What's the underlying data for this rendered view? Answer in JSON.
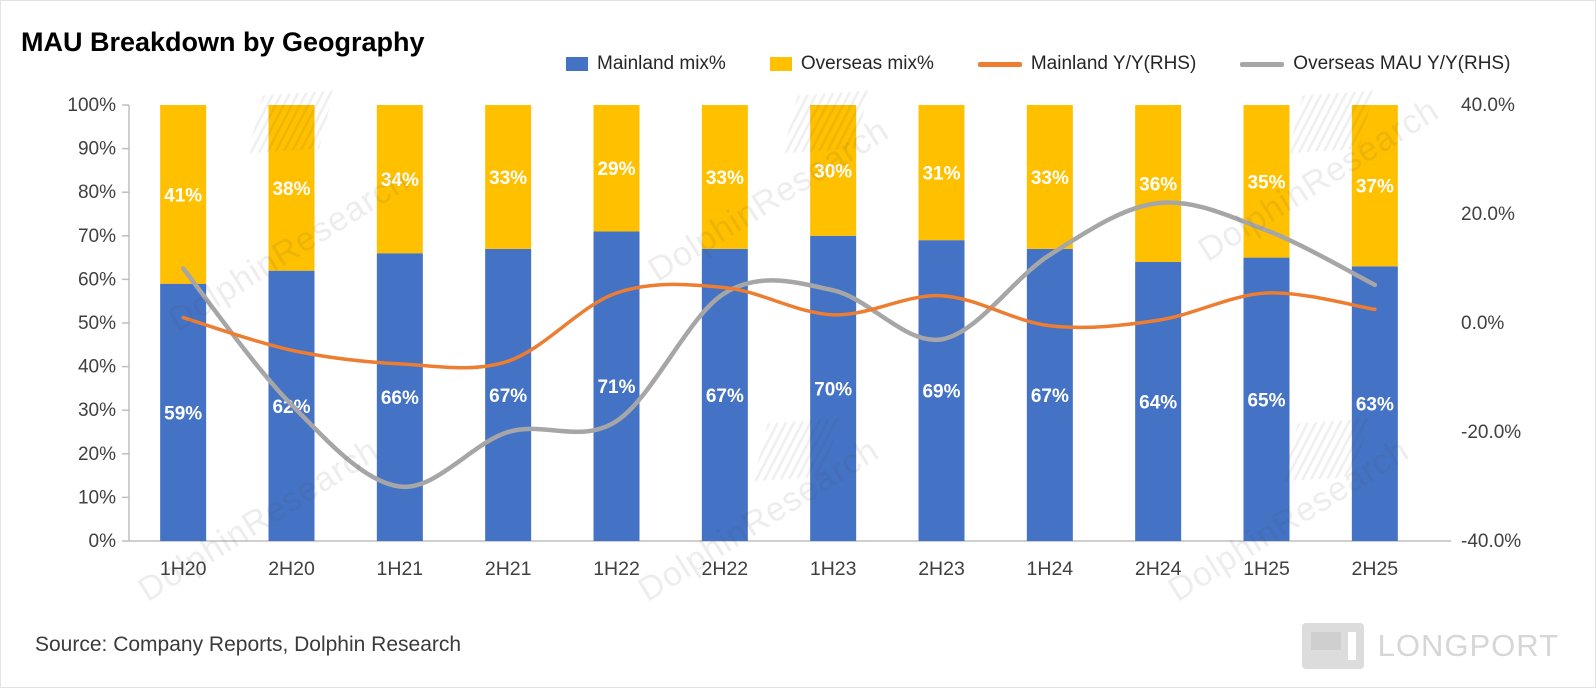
{
  "title": "MAU Breakdown by Geography",
  "source": "Source: Company Reports, Dolphin Research",
  "watermark": "DolphinResearch",
  "logo": {
    "text": "LONGPORT"
  },
  "colors": {
    "mainland_bar": "#4472C4",
    "overseas_bar": "#FFC000",
    "mainland_line": "#ED7D31",
    "overseas_line": "#A6A6A6",
    "axis": "#bfbfbf",
    "tick_text": "#404040",
    "bar_label": "#ffffff"
  },
  "legend": [
    {
      "label": "Mainland mix%",
      "type": "bar",
      "color_key": "mainland_bar"
    },
    {
      "label": "Overseas mix%",
      "type": "bar",
      "color_key": "overseas_bar"
    },
    {
      "label": "Mainland Y/Y(RHS)",
      "type": "line",
      "color_key": "mainland_line"
    },
    {
      "label": "Overseas MAU Y/Y(RHS)",
      "type": "line",
      "color_key": "overseas_line"
    }
  ],
  "chart_data": {
    "type": "bar",
    "subtype": "stacked-bar-with-lines",
    "categories": [
      "1H20",
      "2H20",
      "1H21",
      "2H21",
      "1H22",
      "2H22",
      "1H23",
      "2H23",
      "1H24",
      "2H24",
      "1H25",
      "2H25"
    ],
    "series": [
      {
        "name": "Mainland mix%",
        "type": "bar",
        "axis": "left",
        "color_key": "mainland_bar",
        "values": [
          59,
          62,
          66,
          67,
          71,
          67,
          70,
          69,
          67,
          64,
          65,
          63
        ],
        "labels": [
          "59%",
          "62%",
          "66%",
          "67%",
          "71%",
          "67%",
          "70%",
          "69%",
          "67%",
          "64%",
          "65%",
          "63%"
        ]
      },
      {
        "name": "Overseas mix%",
        "type": "bar",
        "axis": "left",
        "color_key": "overseas_bar",
        "values": [
          41,
          38,
          34,
          33,
          29,
          33,
          30,
          31,
          33,
          36,
          35,
          37
        ],
        "labels": [
          "41%",
          "38%",
          "34%",
          "33%",
          "29%",
          "33%",
          "30%",
          "31%",
          "33%",
          "36%",
          "35%",
          "37%"
        ]
      },
      {
        "name": "Mainland Y/Y(RHS)",
        "type": "line",
        "axis": "right",
        "color_key": "mainland_line",
        "values": [
          1,
          -5,
          -7.5,
          -7,
          5.5,
          6.5,
          1.5,
          5,
          -0.5,
          0.5,
          5.5,
          2.5
        ]
      },
      {
        "name": "Overseas MAU Y/Y(RHS)",
        "type": "line",
        "axis": "right",
        "color_key": "overseas_line",
        "values": [
          10,
          -15,
          -30,
          -20,
          -18,
          5.5,
          6,
          -3,
          12.5,
          22,
          17,
          7
        ]
      }
    ],
    "left_axis": {
      "min": 0,
      "max": 100,
      "tick_labels": [
        "100%",
        "90%",
        "80%",
        "70%",
        "60%",
        "50%",
        "40%",
        "30%",
        "20%",
        "10%",
        "0%"
      ]
    },
    "right_axis": {
      "min": -40,
      "max": 40,
      "tick_values": [
        40,
        20,
        0,
        -20,
        -40
      ],
      "tick_labels": [
        "40.0%",
        "20.0%",
        "0.0%",
        "-20.0%",
        "-40.0%"
      ]
    },
    "grid": "off",
    "legend_position": "top"
  }
}
